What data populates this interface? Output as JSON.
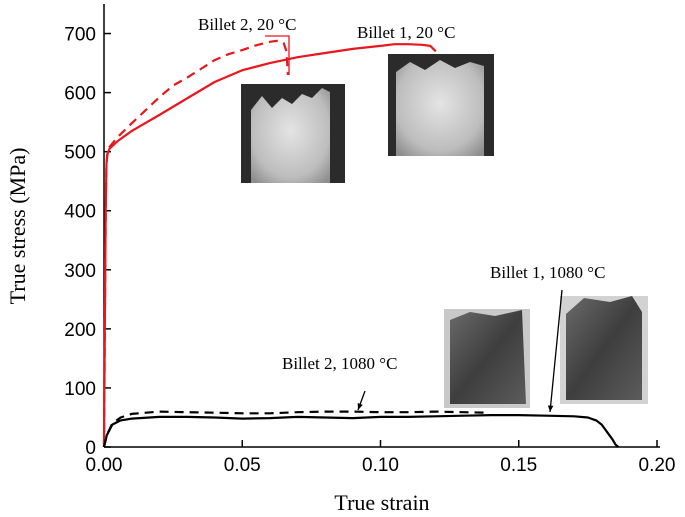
{
  "chart_data": {
    "type": "line",
    "xlabel": "True strain",
    "ylabel": "True stress (MPa)",
    "xlim": [
      0,
      0.2
    ],
    "ylim": [
      0,
      750
    ],
    "xticks": [
      0,
      0.05,
      0.1,
      0.15,
      0.2
    ],
    "xtick_labels": [
      "0.00",
      "0.05",
      "0.10",
      "0.15",
      "0.20"
    ],
    "yticks": [
      0,
      100,
      200,
      300,
      400,
      500,
      600,
      700
    ],
    "ytick_labels": [
      "0",
      "100",
      "200",
      "300",
      "400",
      "500",
      "600",
      "700"
    ],
    "grid": false,
    "series": [
      {
        "name": "Billet 1, 20 °C",
        "color": "#e8171e",
        "dash": "solid",
        "x": [
          0,
          0.0003,
          0.0006,
          0.0009,
          0.0012,
          0.002,
          0.005,
          0.01,
          0.02,
          0.03,
          0.04,
          0.05,
          0.06,
          0.07,
          0.08,
          0.09,
          0.1,
          0.105,
          0.11,
          0.115,
          0.118,
          0.12
        ],
        "y": [
          0,
          200,
          400,
          480,
          495,
          505,
          518,
          535,
          562,
          590,
          618,
          638,
          650,
          660,
          667,
          674,
          679,
          682,
          682,
          681,
          679,
          670
        ]
      },
      {
        "name": "Billet 2, 20 °C",
        "color": "#e8171e",
        "dash": "dashed",
        "x": [
          0,
          0.0003,
          0.0006,
          0.0009,
          0.0012,
          0.002,
          0.005,
          0.01,
          0.015,
          0.02,
          0.025,
          0.03,
          0.035,
          0.04,
          0.045,
          0.05,
          0.055,
          0.06,
          0.063,
          0.065,
          0.066,
          0.0665
        ],
        "y": [
          0,
          200,
          400,
          480,
          495,
          508,
          525,
          548,
          570,
          592,
          612,
          625,
          640,
          655,
          665,
          672,
          680,
          686,
          688,
          684,
          670,
          630
        ]
      },
      {
        "name": "Billet 1, 1080 °C",
        "color": "#000000",
        "dash": "solid",
        "x": [
          0,
          0.001,
          0.003,
          0.006,
          0.01,
          0.02,
          0.03,
          0.04,
          0.05,
          0.06,
          0.07,
          0.08,
          0.09,
          0.1,
          0.11,
          0.12,
          0.13,
          0.14,
          0.15,
          0.16,
          0.17,
          0.175,
          0.178,
          0.18,
          0.182,
          0.184,
          0.185,
          0.186
        ],
        "y": [
          0,
          20,
          38,
          45,
          48,
          51,
          51,
          50,
          48,
          49,
          51,
          50,
          49,
          51,
          51,
          52,
          53,
          54,
          54,
          53,
          52,
          50,
          45,
          38,
          25,
          12,
          4,
          0
        ]
      },
      {
        "name": "Billet 2, 1080 °C",
        "color": "#000000",
        "dash": "dashed",
        "x": [
          0,
          0.001,
          0.003,
          0.006,
          0.01,
          0.02,
          0.03,
          0.04,
          0.05,
          0.06,
          0.07,
          0.08,
          0.09,
          0.1,
          0.11,
          0.12,
          0.13,
          0.138
        ],
        "y": [
          0,
          20,
          40,
          50,
          56,
          60,
          59,
          58,
          57,
          57,
          59,
          60,
          60,
          59,
          59,
          60,
          59,
          58
        ]
      }
    ],
    "annotations": [
      {
        "text": "Billet 2, 20 °C",
        "points_to": [
          0.065,
          688
        ]
      },
      {
        "text": "Billet 1, 20 °C",
        "points_to": [
          0.12,
          680
        ]
      },
      {
        "text": "Billet 1, 1080 °C",
        "points_to": [
          0.161,
          55
        ]
      },
      {
        "text": "Billet 2, 1080 °C",
        "points_to": [
          0.093,
          62
        ]
      }
    ],
    "insets": [
      {
        "name": "Billet 2 specimen after test at 20 °C",
        "tone": "light"
      },
      {
        "name": "Billet 1 specimen after test at 20 °C",
        "tone": "light"
      },
      {
        "name": "Billet 2 specimen after test at 1080 °C",
        "tone": "dark"
      },
      {
        "name": "Billet 1 specimen after test at 1080 °C",
        "tone": "dark"
      }
    ]
  }
}
